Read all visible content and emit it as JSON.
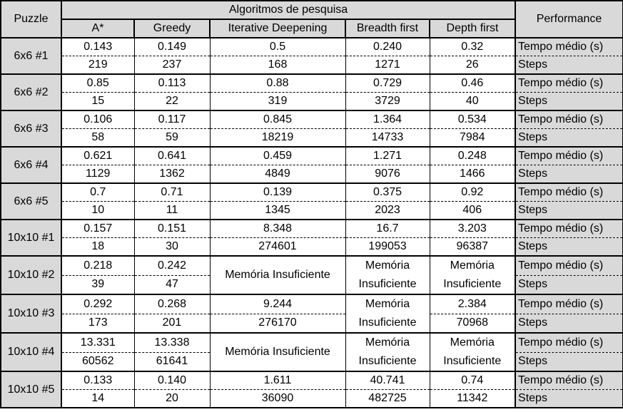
{
  "headers": {
    "puzzle": "Puzzle",
    "algorithms": "Algoritmos de pesquisa",
    "performance": "Performance",
    "columns": [
      "A*",
      "Greedy",
      "Iterative Deepening",
      "Breadth first",
      "Depth first"
    ]
  },
  "metric_labels": {
    "time": "Tempo médio (s)",
    "steps": "Steps"
  },
  "rows": [
    {
      "puzzle": "6x6 #1",
      "time": [
        "0.143",
        "0.149",
        "0.5",
        "0.240",
        "0.32"
      ],
      "steps": [
        "219",
        "237",
        "168",
        "1271",
        "26"
      ]
    },
    {
      "puzzle": "6x6 #2",
      "time": [
        "0.85",
        "0.113",
        "0.88",
        "0.729",
        "0.46"
      ],
      "steps": [
        "15",
        "22",
        "319",
        "3729",
        "40"
      ]
    },
    {
      "puzzle": "6x6 #3",
      "time": [
        "0.106",
        "0.117",
        "0.845",
        "1.364",
        "0.534"
      ],
      "steps": [
        "58",
        "59",
        "18219",
        "14733",
        "7984"
      ]
    },
    {
      "puzzle": "6x6 #4",
      "time": [
        "0.621",
        "0.641",
        "0.459",
        "1.271",
        "0.248"
      ],
      "steps": [
        "1129",
        "1362",
        "4849",
        "9076",
        "1466"
      ]
    },
    {
      "puzzle": "6x6 #5",
      "time": [
        "0.7",
        "0.71",
        "0.139",
        "0.375",
        "0.92"
      ],
      "steps": [
        "10",
        "11",
        "1345",
        "2023",
        "406"
      ]
    },
    {
      "puzzle": "10x10 #1",
      "time": [
        "0.157",
        "0.151",
        "8.348",
        "16.7",
        "3.203"
      ],
      "steps": [
        "18",
        "30",
        "274601",
        "199053",
        "96387"
      ]
    },
    {
      "puzzle": "10x10 #2",
      "time": [
        "0.218",
        "0.242"
      ],
      "steps": [
        "39",
        "47"
      ],
      "merged": [
        "Memória Insuficiente",
        "Memória Insuficiente",
        "Memória Insuficiente"
      ]
    },
    {
      "puzzle": "10x10 #3",
      "time": [
        "0.292",
        "0.268",
        "9.244",
        null,
        "2.384"
      ],
      "steps": [
        "173",
        "201",
        "276170",
        null,
        "70968"
      ],
      "merged_bfs": "Memória Insuficiente"
    },
    {
      "puzzle": "10x10 #4",
      "time": [
        "13.331",
        "13.338"
      ],
      "steps": [
        "60562",
        "61641"
      ],
      "merged": [
        "Memória Insuficiente",
        "Memória Insuficiente",
        "Memória Insuficiente"
      ]
    },
    {
      "puzzle": "10x10 #5",
      "time": [
        "0.133",
        "0.140",
        "1.611",
        "40.741",
        "0.74"
      ],
      "steps": [
        "14",
        "20",
        "36090",
        "482725",
        "11342"
      ]
    }
  ]
}
